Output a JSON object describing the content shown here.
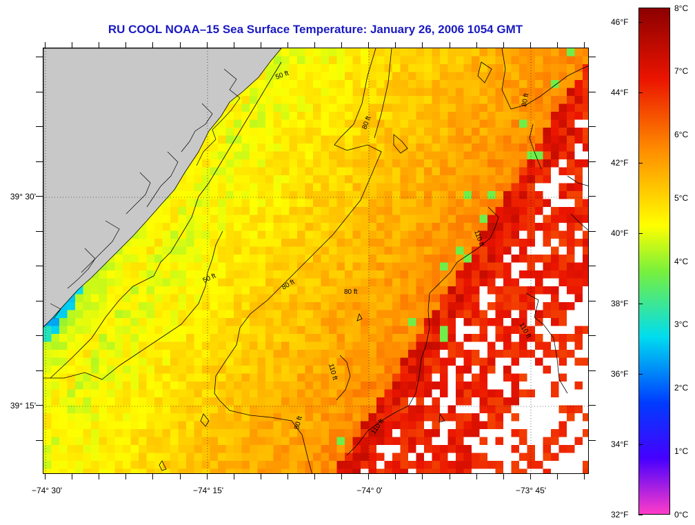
{
  "title": "RU COOL  NOAA–15  Sea Surface Temperature:  January 26, 2006 1054 GMT",
  "lat_labels": [
    "39° 30'",
    "39° 15'"
  ],
  "lon_labels": [
    "−74° 30'",
    "−74° 15'",
    "−74° 0'",
    "−73° 45'"
  ],
  "contour_labels": [
    "50 ft",
    "50 ft",
    "80 ft",
    "80 ft",
    "80 ft",
    "80 ft",
    "110 ft",
    "110 ft",
    "110 ft",
    "110 ft",
    "80 ft"
  ],
  "colorbar": {
    "fahrenheit_labels": [
      "46°F",
      "44°F",
      "42°F",
      "40°F",
      "38°F",
      "36°F",
      "34°F",
      "32°F"
    ],
    "celsius_labels": [
      "8°C",
      "7°C",
      "6°C",
      "5°C",
      "4°C",
      "3°C",
      "2°C",
      "1°C",
      "0°C"
    ],
    "range_celsius": [
      0,
      8
    ]
  },
  "colors": {
    "land": "#c8c8c8",
    "no_data": "#ffffff",
    "title": "#1a1ac0"
  }
}
